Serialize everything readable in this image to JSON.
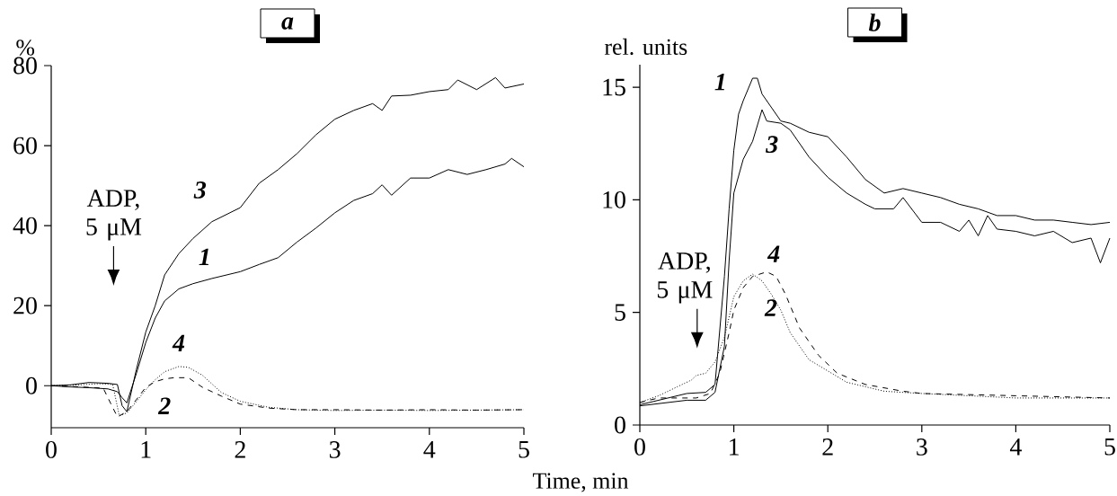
{
  "chart_data": [
    {
      "type": "line",
      "title": "a",
      "xlabel": "Time, min",
      "ylabel": "%",
      "xlim": [
        0,
        5
      ],
      "ylim": [
        -10.5,
        80
      ],
      "xticks": [
        0,
        1,
        2,
        3,
        4,
        5
      ],
      "yticks": [
        0,
        20,
        40,
        60,
        80
      ],
      "annotations": [
        "ADP, 5 μM"
      ],
      "series": [
        {
          "name": "1",
          "color": "#000000",
          "line_style": "solid",
          "x": [
            0,
            0.2,
            0.4,
            0.6,
            0.7,
            0.75,
            0.8,
            0.9,
            1.0,
            1.1,
            1.2,
            1.35,
            1.5,
            1.7,
            2.0,
            2.2,
            2.4,
            2.6,
            2.8,
            3.0,
            3.2,
            3.4,
            3.5,
            3.6,
            3.8,
            4.0,
            4.2,
            4.4,
            4.6,
            4.8,
            4.87,
            5.0
          ],
          "values": [
            0,
            -0.3,
            -0.5,
            -0.8,
            -1.5,
            -3,
            -4.3,
            3,
            10.8,
            16.9,
            21.2,
            24.2,
            25.5,
            26.8,
            28.5,
            30.3,
            32,
            35.9,
            39.4,
            43.2,
            46.3,
            48,
            50.2,
            47.6,
            51.9,
            51.9,
            54,
            52.8,
            54,
            55.4,
            56.8,
            54.7
          ]
        },
        {
          "name": "2",
          "color": "#000000",
          "line_style": "dashed",
          "x": [
            0,
            0.3,
            0.55,
            0.62,
            0.7,
            0.8,
            0.9,
            1.0,
            1.1,
            1.2,
            1.3,
            1.45,
            1.6,
            1.8,
            2.0,
            2.3,
            2.6,
            3.0,
            3.5,
            4.0,
            4.5,
            5.0
          ],
          "values": [
            0,
            -0.3,
            -0.6,
            -4,
            -7.8,
            -6.5,
            -3.5,
            -0.4,
            1,
            1.7,
            2,
            2,
            -0.4,
            -2.6,
            -4.6,
            -5.6,
            -6,
            -6,
            -6.1,
            -6,
            -6.1,
            -6
          ]
        },
        {
          "name": "3",
          "color": "#000000",
          "line_style": "solid",
          "x": [
            0,
            0.2,
            0.4,
            0.6,
            0.7,
            0.75,
            0.8,
            0.9,
            1.0,
            1.1,
            1.2,
            1.35,
            1.5,
            1.7,
            2.0,
            2.2,
            2.4,
            2.6,
            2.8,
            3.0,
            3.2,
            3.4,
            3.5,
            3.6,
            3.8,
            4.0,
            4.2,
            4.3,
            4.5,
            4.7,
            4.8,
            5.0
          ],
          "values": [
            0,
            0.2,
            0.8,
            0.6,
            0.3,
            -5,
            -6.5,
            4,
            13.4,
            20,
            27.7,
            33,
            36.8,
            41,
            44.5,
            50.6,
            54,
            58,
            62.7,
            66.6,
            68.8,
            70.5,
            68.8,
            72.4,
            72.6,
            73.5,
            74,
            76.4,
            74,
            77,
            74.4,
            75.4
          ]
        },
        {
          "name": "4",
          "color": "#000000",
          "line_style": "dotted",
          "x": [
            0,
            0.3,
            0.5,
            0.65,
            0.72,
            0.8,
            0.9,
            1.0,
            1.1,
            1.2,
            1.35,
            1.45,
            1.6,
            1.8,
            2.0,
            2.3,
            2.6,
            3.0,
            3.5,
            4.0,
            4.5,
            5.0
          ],
          "values": [
            0,
            0.2,
            0.5,
            0.3,
            -7.5,
            -6.8,
            -4,
            -1,
            1.5,
            3.5,
            4.8,
            4.6,
            2.6,
            -1.7,
            -3.9,
            -5.4,
            -6,
            -6.2,
            -6.1,
            -6.2,
            -6.1,
            -6
          ]
        }
      ]
    },
    {
      "type": "line",
      "title": "b",
      "ylabel": "rel. units",
      "xlim": [
        0,
        5
      ],
      "ylim": [
        0,
        16
      ],
      "xticks": [
        0,
        1,
        2,
        3,
        4,
        5
      ],
      "yticks": [
        0,
        5,
        10,
        15
      ],
      "annotations": [
        "ADP, 5 μM"
      ],
      "series": [
        {
          "name": "1",
          "color": "#000000",
          "line_style": "solid",
          "x": [
            0,
            0.2,
            0.5,
            0.7,
            0.8,
            0.9,
            0.95,
            1.0,
            1.05,
            1.1,
            1.2,
            1.25,
            1.3,
            1.4,
            1.5,
            1.6,
            1.8,
            2.0,
            2.2,
            2.4,
            2.6,
            2.8,
            3.0,
            3.2,
            3.4,
            3.6,
            3.8,
            4.0,
            4.2,
            4.4,
            4.6,
            4.8,
            5.0
          ],
          "values": [
            0.9,
            1.1,
            1.4,
            1.45,
            1.8,
            6.6,
            9.6,
            12.2,
            13.8,
            14.4,
            15.4,
            15.4,
            14.7,
            14.1,
            13.5,
            13.4,
            13,
            12.8,
            11.9,
            10.9,
            10.3,
            10.5,
            10.3,
            10.1,
            9.8,
            9.6,
            9.3,
            9.3,
            9.1,
            9.1,
            9,
            8.9,
            9
          ]
        },
        {
          "name": "2",
          "color": "#000000",
          "line_style": "dotted",
          "x": [
            0,
            0.2,
            0.4,
            0.55,
            0.6,
            0.7,
            0.8,
            0.9,
            1.0,
            1.1,
            1.2,
            1.3,
            1.4,
            1.5,
            1.6,
            1.8,
            2.0,
            2.2,
            2.4,
            2.6,
            3.0,
            4.0,
            5.0
          ],
          "values": [
            1.0,
            1.3,
            1.7,
            2.0,
            2.2,
            2.3,
            2.8,
            3.9,
            5.7,
            6.4,
            6.7,
            6.4,
            5.8,
            5.1,
            4.1,
            2.9,
            2.4,
            1.9,
            1.7,
            1.5,
            1.4,
            1.2,
            1.2
          ]
        },
        {
          "name": "3",
          "color": "#000000",
          "line_style": "solid",
          "x": [
            0,
            0.5,
            0.7,
            0.8,
            0.9,
            0.95,
            1.0,
            1.1,
            1.2,
            1.3,
            1.35,
            1.5,
            1.6,
            1.8,
            2.0,
            2.2,
            2.4,
            2.5,
            2.7,
            2.8,
            3.0,
            3.2,
            3.4,
            3.5,
            3.6,
            3.7,
            3.8,
            4.0,
            4.2,
            4.4,
            4.6,
            4.8,
            4.9,
            5.0
          ],
          "values": [
            0.85,
            1.1,
            1.1,
            1.45,
            3.5,
            7.3,
            10.3,
            11.8,
            12.6,
            14,
            13.5,
            13.4,
            13.1,
            11.9,
            11,
            10.3,
            9.8,
            9.6,
            9.6,
            10.1,
            9,
            9,
            8.6,
            9.1,
            8.4,
            9.3,
            8.7,
            8.6,
            8.4,
            8.6,
            8.1,
            8.3,
            7.2,
            8.3
          ]
        },
        {
          "name": "4",
          "color": "#000000",
          "line_style": "dashed",
          "x": [
            0,
            0.2,
            0.6,
            0.75,
            0.85,
            0.95,
            1.0,
            1.1,
            1.2,
            1.35,
            1.45,
            1.55,
            1.7,
            1.9,
            2.1,
            2.4,
            2.8,
            3.0,
            4.0,
            5.0
          ],
          "values": [
            1.0,
            1.2,
            1.2,
            1.4,
            2.3,
            4.1,
            5.1,
            6.1,
            6.6,
            6.8,
            6.6,
            5.8,
            4.3,
            3.1,
            2.3,
            1.8,
            1.5,
            1.4,
            1.3,
            1.2
          ]
        }
      ]
    }
  ]
}
